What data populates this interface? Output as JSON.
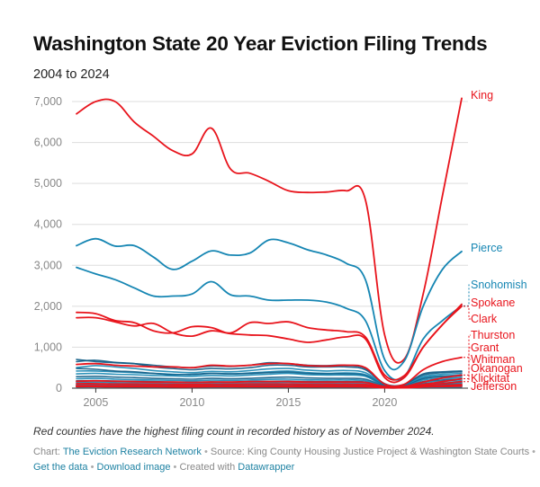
{
  "header": {
    "title": "Washington State 20 Year Eviction Filing Trends",
    "subtitle": "2004 to 2024"
  },
  "colors": {
    "red": "#e8141c",
    "blue": "#1686b3",
    "dark_blue": "#0f5c85",
    "grid": "#dddddd",
    "axis_text": "#888888"
  },
  "note": "Red counties have the highest filing count in recorded history as of November 2024.",
  "footer": {
    "chart_prefix": "Chart:",
    "chart_source": "The Eviction Research Network",
    "source_text": "Source: King County Housing Justice Project & Washington State Courts",
    "get_data": "Get the data",
    "download_image": "Download image",
    "created_prefix": "Created with",
    "created_tool": "Datawrapper"
  },
  "chart_data": {
    "type": "line",
    "title": "Washington State 20 Year Eviction Filing Trends",
    "subtitle": "2004 to 2024",
    "xlim": [
      2004,
      2024
    ],
    "ylim": [
      0,
      7000
    ],
    "x_ticks": [
      2005,
      2010,
      2015,
      2020
    ],
    "y_ticks": [
      0,
      1000,
      2000,
      3000,
      4000,
      5000,
      6000,
      7000
    ],
    "y_tick_labels": [
      "0",
      "1,000",
      "2,000",
      "3,000",
      "4,000",
      "5,000",
      "6,000",
      "7,000"
    ],
    "grid": true,
    "x": [
      2004,
      2005,
      2006,
      2007,
      2008,
      2009,
      2010,
      2011,
      2012,
      2013,
      2014,
      2015,
      2016,
      2017,
      2018,
      2019,
      2020,
      2021,
      2022,
      2023,
      2024
    ],
    "series": [
      {
        "name": "King",
        "color": "red",
        "values": [
          6700,
          7000,
          7000,
          6500,
          6150,
          5800,
          5720,
          6350,
          5350,
          5250,
          5050,
          4820,
          4780,
          4790,
          4820,
          4600,
          1300,
          700,
          2300,
          4700,
          7080
        ]
      },
      {
        "name": "Pierce",
        "color": "blue",
        "values": [
          3480,
          3650,
          3470,
          3480,
          3200,
          2900,
          3100,
          3350,
          3250,
          3300,
          3620,
          3550,
          3380,
          3250,
          3050,
          2650,
          700,
          650,
          2000,
          2900,
          3340
        ]
      },
      {
        "name": "Snohomish",
        "color": "blue",
        "values": [
          2950,
          2790,
          2650,
          2450,
          2250,
          2250,
          2300,
          2600,
          2280,
          2250,
          2150,
          2150,
          2150,
          2100,
          1950,
          1650,
          430,
          280,
          1200,
          1650,
          2010
        ]
      },
      {
        "name": "Spokane",
        "color": "red",
        "values": [
          1850,
          1820,
          1650,
          1600,
          1400,
          1350,
          1500,
          1480,
          1350,
          1600,
          1580,
          1620,
          1480,
          1420,
          1380,
          1250,
          320,
          300,
          1000,
          1550,
          2050
        ]
      },
      {
        "name": "Clark",
        "color": "red",
        "values": [
          1720,
          1720,
          1620,
          1520,
          1580,
          1350,
          1270,
          1400,
          1330,
          1300,
          1280,
          1200,
          1120,
          1180,
          1250,
          1200,
          260,
          250,
          1000,
          1550,
          2000
        ]
      },
      {
        "name": "Thurston",
        "color": "red",
        "values": [
          580,
          600,
          560,
          540,
          520,
          520,
          500,
          560,
          540,
          560,
          600,
          600,
          550,
          540,
          560,
          500,
          100,
          90,
          450,
          650,
          750
        ]
      },
      {
        "name": "Grant",
        "color": "red",
        "values": [
          170,
          180,
          170,
          160,
          150,
          150,
          140,
          150,
          150,
          160,
          160,
          160,
          150,
          150,
          150,
          140,
          40,
          40,
          150,
          250,
          320
        ]
      },
      {
        "name": "Whitman",
        "color": "red",
        "values": [
          60,
          60,
          55,
          55,
          50,
          50,
          50,
          50,
          50,
          55,
          55,
          55,
          50,
          50,
          50,
          50,
          15,
          15,
          60,
          110,
          160
        ]
      },
      {
        "name": "Okanogan",
        "color": "red",
        "values": [
          110,
          110,
          100,
          100,
          95,
          95,
          90,
          95,
          95,
          100,
          100,
          100,
          95,
          95,
          95,
          90,
          25,
          25,
          90,
          160,
          230
        ]
      },
      {
        "name": "Klickitat",
        "color": "red",
        "values": [
          40,
          40,
          35,
          35,
          35,
          30,
          30,
          35,
          35,
          35,
          35,
          35,
          35,
          35,
          35,
          30,
          10,
          10,
          30,
          60,
          90
        ]
      },
      {
        "name": "Jefferson",
        "color": "red",
        "values": [
          50,
          50,
          45,
          45,
          40,
          40,
          40,
          45,
          45,
          45,
          45,
          45,
          40,
          40,
          40,
          40,
          10,
          10,
          30,
          40,
          50
        ]
      },
      {
        "color": "dark_blue",
        "values": [
          700,
          650,
          620,
          600,
          560,
          520,
          500,
          540,
          530,
          560,
          620,
          600,
          560,
          550,
          560,
          480,
          110,
          90,
          350,
          400,
          420
        ]
      },
      {
        "color": "dark_blue",
        "values": [
          650,
          680,
          630,
          600,
          520,
          480,
          450,
          480,
          470,
          500,
          560,
          560,
          520,
          520,
          520,
          450,
          100,
          80,
          320,
          380,
          400
        ]
      },
      {
        "color": "blue",
        "values": [
          500,
          550,
          520,
          480,
          430,
          400,
          380,
          410,
          400,
          430,
          470,
          480,
          440,
          420,
          430,
          380,
          90,
          70,
          280,
          340,
          360
        ]
      },
      {
        "color": "blue",
        "values": [
          420,
          420,
          400,
          380,
          360,
          340,
          330,
          360,
          350,
          370,
          400,
          420,
          380,
          360,
          370,
          330,
          80,
          60,
          250,
          300,
          320
        ]
      },
      {
        "color": "dark_blue",
        "values": [
          480,
          460,
          420,
          400,
          360,
          330,
          340,
          360,
          350,
          360,
          380,
          390,
          360,
          350,
          350,
          310,
          70,
          55,
          230,
          280,
          300
        ]
      },
      {
        "color": "blue",
        "values": [
          350,
          360,
          340,
          330,
          310,
          300,
          290,
          310,
          300,
          320,
          340,
          360,
          330,
          320,
          320,
          290,
          60,
          45,
          200,
          240,
          260
        ]
      },
      {
        "color": "dark_blue",
        "values": [
          280,
          290,
          270,
          260,
          240,
          230,
          220,
          240,
          230,
          240,
          260,
          270,
          250,
          240,
          240,
          220,
          50,
          40,
          160,
          200,
          220
        ]
      },
      {
        "color": "blue",
        "values": [
          230,
          240,
          220,
          210,
          200,
          190,
          180,
          195,
          190,
          200,
          215,
          220,
          205,
          200,
          200,
          185,
          40,
          35,
          140,
          170,
          180
        ]
      },
      {
        "color": "dark_blue",
        "values": [
          180,
          185,
          175,
          170,
          160,
          150,
          145,
          155,
          150,
          160,
          170,
          175,
          165,
          160,
          160,
          150,
          35,
          30,
          110,
          130,
          140
        ]
      },
      {
        "color": "blue",
        "values": [
          140,
          145,
          135,
          130,
          125,
          120,
          115,
          120,
          118,
          125,
          135,
          140,
          130,
          125,
          125,
          115,
          28,
          25,
          90,
          110,
          120
        ]
      },
      {
        "color": "dark_blue",
        "values": [
          100,
          105,
          100,
          95,
          90,
          85,
          80,
          85,
          85,
          90,
          95,
          100,
          95,
          90,
          90,
          85,
          20,
          18,
          70,
          85,
          90
        ]
      },
      {
        "color": "blue",
        "values": [
          80,
          82,
          78,
          75,
          70,
          68,
          65,
          70,
          68,
          72,
          76,
          80,
          75,
          72,
          72,
          66,
          15,
          14,
          55,
          65,
          70
        ]
      },
      {
        "color": "dark_blue",
        "values": [
          60,
          62,
          58,
          56,
          54,
          52,
          50,
          53,
          52,
          55,
          57,
          60,
          56,
          54,
          54,
          50,
          12,
          11,
          40,
          50,
          55
        ]
      },
      {
        "color": "blue",
        "values": [
          30,
          32,
          30,
          28,
          27,
          26,
          25,
          27,
          26,
          28,
          29,
          30,
          28,
          27,
          27,
          25,
          6,
          6,
          20,
          25,
          28
        ]
      }
    ]
  }
}
